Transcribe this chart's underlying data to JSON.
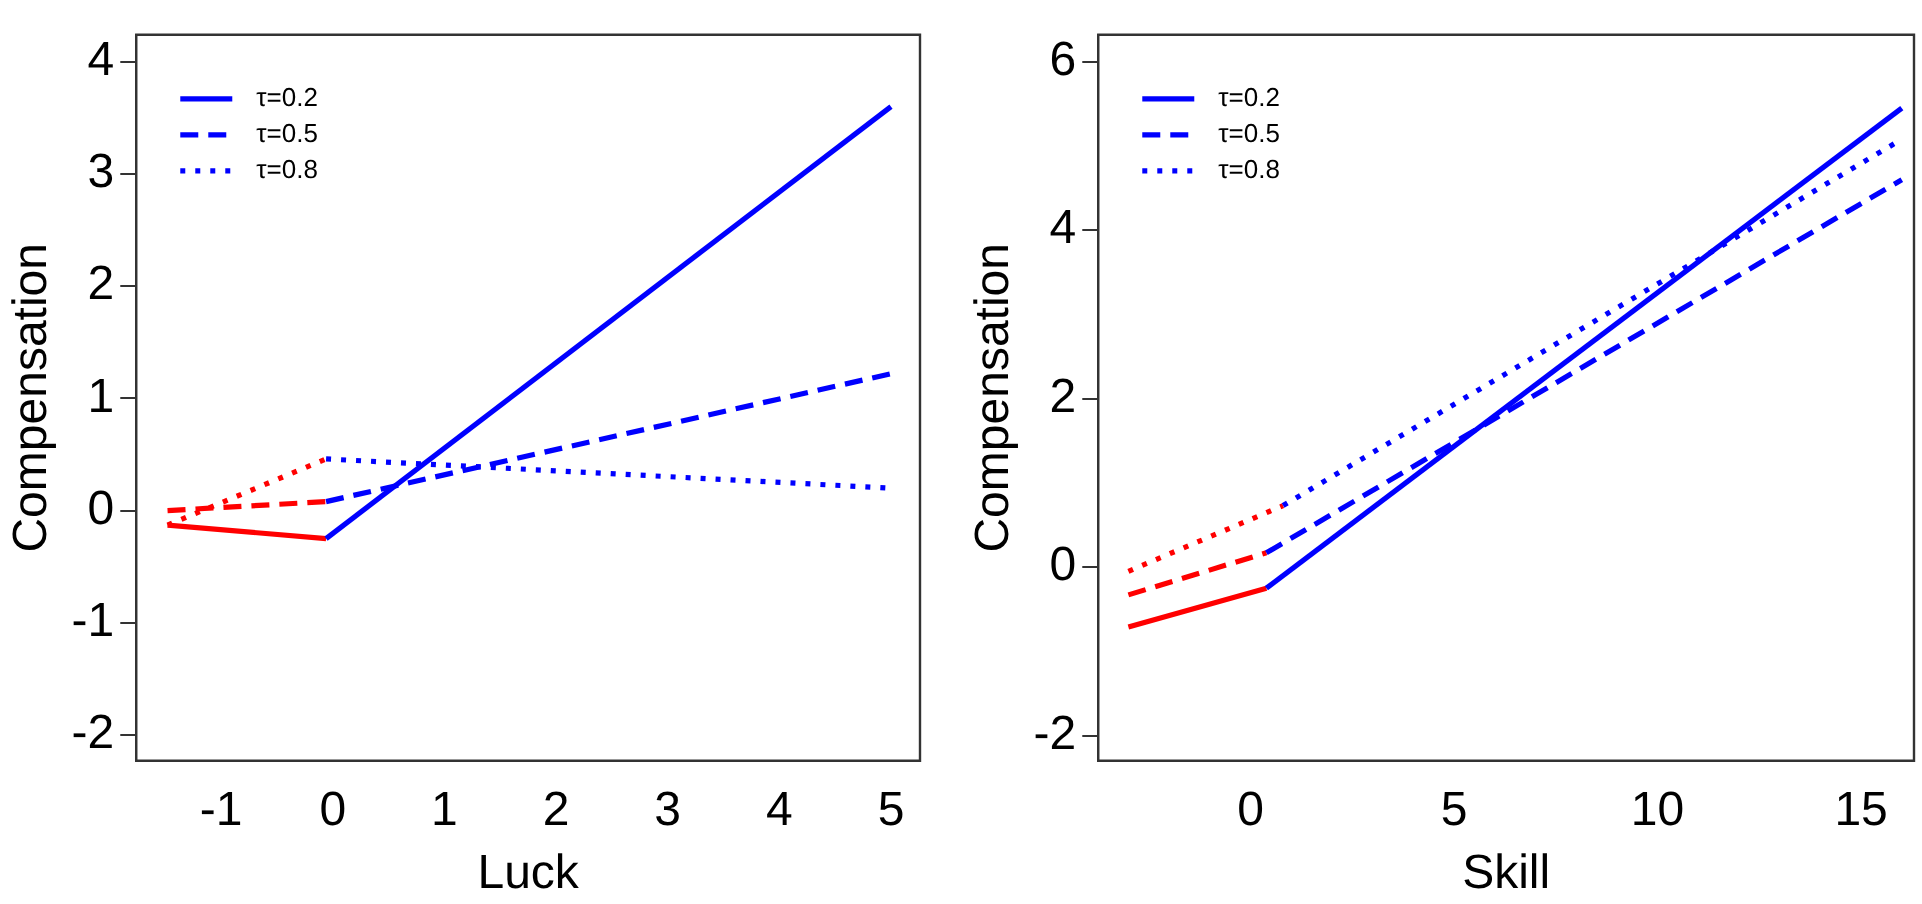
{
  "chart_data": [
    {
      "type": "line",
      "xlabel": "Luck",
      "ylabel": "Compensation",
      "xlim": [
        -1.76,
        5.26
      ],
      "xticks": [
        -1,
        0,
        1,
        2,
        3,
        4,
        5
      ],
      "ylim": [
        -2.23,
        4.24
      ],
      "yticks": [
        -2,
        -1,
        0,
        1,
        2,
        3,
        4
      ],
      "legend": "top left",
      "grid": false,
      "marker": "none",
      "series": [
        {
          "name": "τ=0.2",
          "line_style": "solid",
          "color": "#0000ff",
          "x": [
            -0.06,
            5
          ],
          "values": [
            -0.25,
            3.6
          ]
        },
        {
          "name": "τ=0.5",
          "line_style": "dashed",
          "color": "#0000ff",
          "x": [
            -0.06,
            5
          ],
          "values": [
            0.08,
            1.22
          ]
        },
        {
          "name": "τ=0.8",
          "line_style": "dotted",
          "color": "#0000ff",
          "x": [
            -0.06,
            5
          ],
          "values": [
            0.46,
            0.2
          ]
        },
        {
          "line_style": "solid",
          "color": "#ff0000",
          "x": [
            -1.48,
            -0.06
          ],
          "values": [
            -0.13,
            -0.25
          ]
        },
        {
          "line_style": "dashed",
          "color": "#ff0000",
          "x": [
            -1.48,
            -0.06
          ],
          "values": [
            0.0,
            0.08
          ]
        },
        {
          "line_style": "dotted",
          "color": "#ff0000",
          "x": [
            -1.48,
            -0.06
          ],
          "values": [
            -0.13,
            0.46
          ]
        }
      ]
    },
    {
      "type": "line",
      "xlabel": "Skill",
      "ylabel": "Compensation",
      "xlim": [
        -3.74,
        16.3
      ],
      "xticks": [
        0,
        5,
        10,
        15
      ],
      "ylim": [
        -2.3,
        6.32
      ],
      "yticks": [
        -2,
        0,
        2,
        4,
        6
      ],
      "legend": "top left",
      "grid": false,
      "marker": "none",
      "series": [
        {
          "name": "τ=0.2",
          "line_style": "solid",
          "color": "#0000ff",
          "x": [
            0.39,
            16
          ],
          "values": [
            -0.25,
            5.45
          ]
        },
        {
          "name": "τ=0.5",
          "line_style": "dashed",
          "color": "#0000ff",
          "x": [
            0.39,
            16
          ],
          "values": [
            0.17,
            4.6
          ]
        },
        {
          "name": "τ=0.8",
          "line_style": "dotted",
          "color": "#0000ff",
          "x": [
            0.8,
            16
          ],
          "values": [
            0.73,
            5.08
          ]
        },
        {
          "line_style": "solid",
          "color": "#ff0000",
          "x": [
            -3.0,
            0.39
          ],
          "values": [
            -0.71,
            -0.25
          ]
        },
        {
          "line_style": "dashed",
          "color": "#ff0000",
          "x": [
            -3.0,
            0.39
          ],
          "values": [
            -0.33,
            0.17
          ]
        },
        {
          "line_style": "dotted",
          "color": "#ff0000",
          "x": [
            -3.0,
            0.8
          ],
          "values": [
            -0.05,
            0.73
          ]
        }
      ]
    }
  ]
}
